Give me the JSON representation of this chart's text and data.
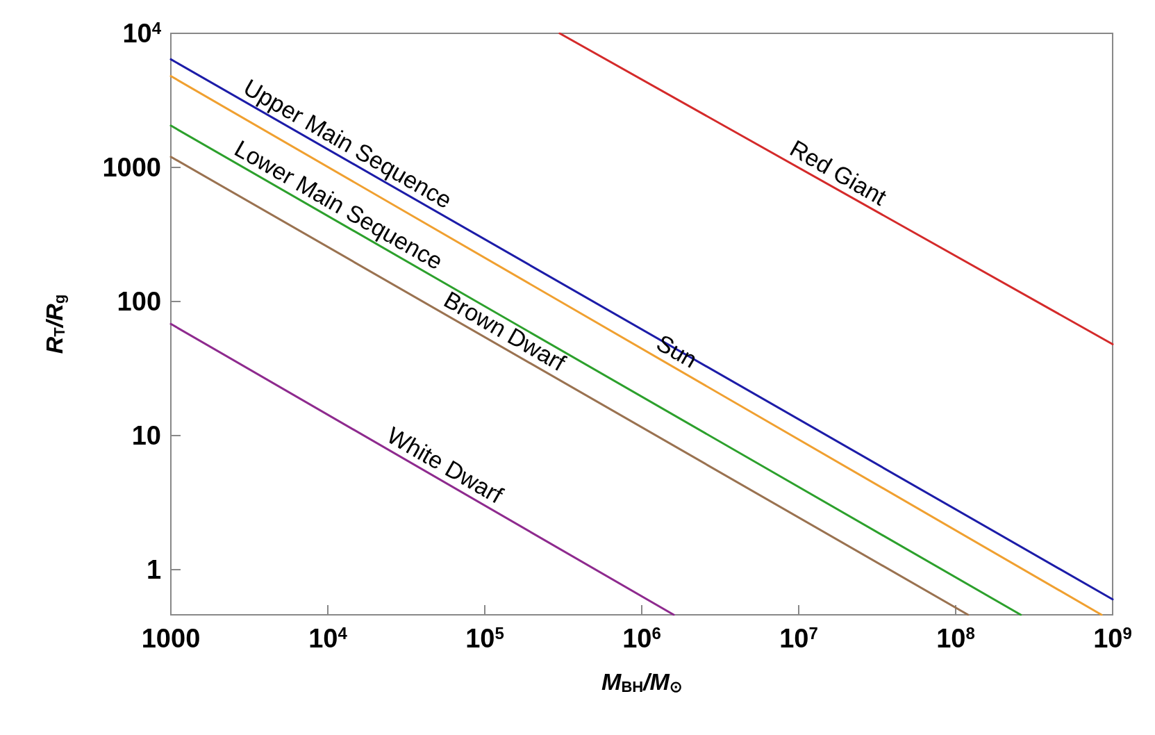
{
  "chart_data": {
    "type": "line",
    "xlabel": "M$_{BH}$/M$_{⊙}$",
    "ylabel": "R$_{T}$/R$_{g}$",
    "log": "xy",
    "grid": false,
    "marker": "none",
    "line_style": "solid",
    "xlim": [
      1000,
      1000000000
    ],
    "ylim": [
      0.46,
      10000
    ],
    "xticks": [
      1000,
      {
        "value": 10000,
        "label": "10$^{4}$"
      },
      {
        "value": 100000,
        "label": "10$^{5}$"
      },
      {
        "value": 1000000,
        "label": "10$^{6}$"
      },
      {
        "value": 10000000,
        "label": "10$^{7}$"
      },
      {
        "value": 100000000,
        "label": "10$^{8}$"
      },
      {
        "value": 1000000000,
        "label": "10$^{9}$"
      }
    ],
    "yticks": [
      1,
      10,
      100,
      1000,
      {
        "value": 10000,
        "label": "10$^{4}$"
      }
    ],
    "series": [
      {
        "color": "#1c1ca8",
        "x": [
          1000,
          1000000000
        ],
        "values": [
          6400,
          0.6
        ]
      },
      {
        "color": "#f0a030",
        "x": [
          1000,
          850000000
        ],
        "values": [
          4800,
          0.46
        ]
      },
      {
        "color": "#2ca02c",
        "x": [
          1000,
          260000000
        ],
        "values": [
          2050,
          0.46
        ]
      },
      {
        "color": "#9a7250",
        "x": [
          1000,
          120000000
        ],
        "values": [
          1200,
          0.46
        ]
      },
      {
        "color": "#8e2a8e",
        "x": [
          1000,
          1600000
        ],
        "values": [
          68,
          0.46
        ]
      },
      {
        "color": "#d42a2a",
        "x": [
          300000,
          1000000000
        ],
        "values": [
          10000,
          48
        ]
      }
    ],
    "annotations": [
      {
        "text": "Upper Main Sequence",
        "x": 12000,
        "y": 1200
      },
      {
        "text": "Lower Main Sequence",
        "x": 10500,
        "y": 420
      },
      {
        "text": "Brown Dwarf",
        "x": 120000,
        "y": 48
      },
      {
        "text": "Sun",
        "x": 1500000,
        "y": 34
      },
      {
        "text": "White Dwarf",
        "x": 50000,
        "y": 4.8
      },
      {
        "text": "Red Giant",
        "x": 16000000,
        "y": 730
      }
    ]
  }
}
